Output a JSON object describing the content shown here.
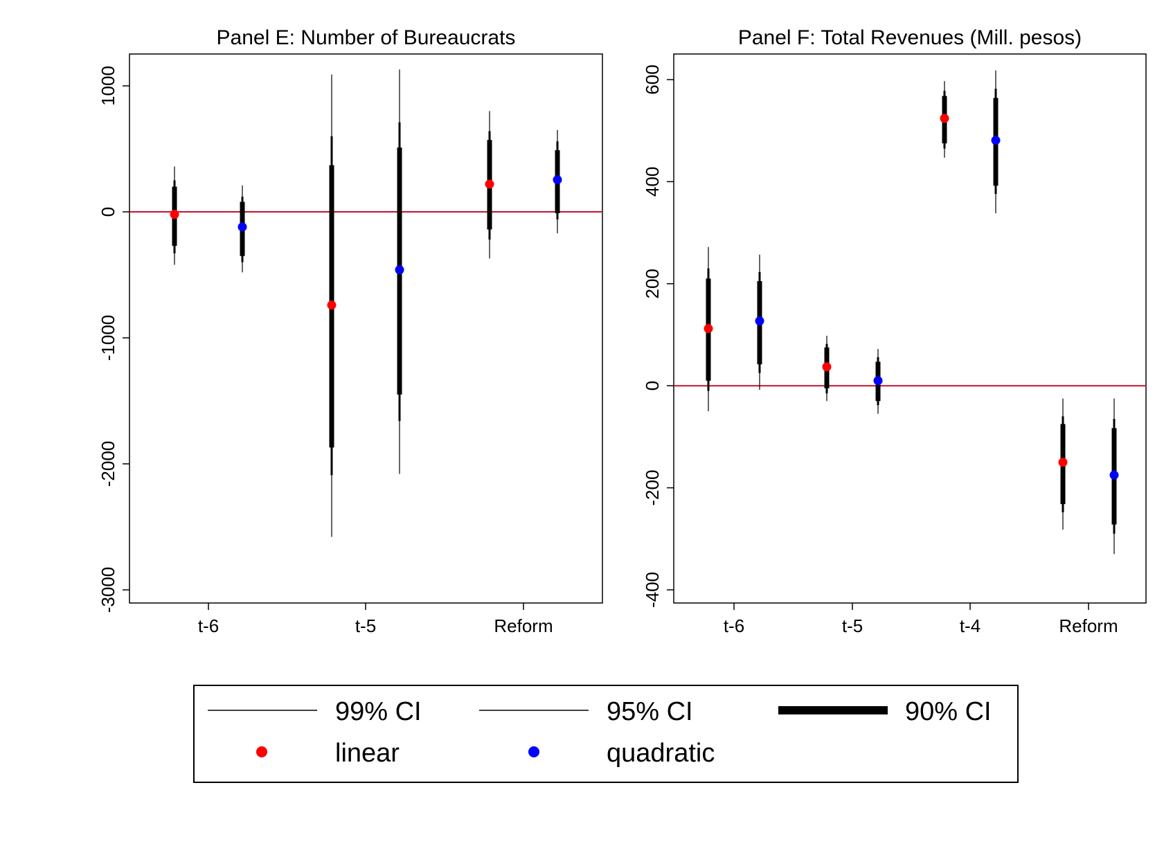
{
  "chart_data": [
    {
      "type": "errorbar",
      "title": "Panel E: Number of Bureaucrats",
      "categories": [
        "t-6",
        "t-5",
        "Reform"
      ],
      "y_ticks": [
        1000,
        0,
        -1000,
        -2000,
        -3000
      ],
      "ylim": [
        -3000,
        1250
      ],
      "reference_line": 0,
      "grid": false,
      "points": [
        {
          "category": "t-6",
          "series": "linear",
          "estimate": -20,
          "ci90": [
            -270,
            200
          ],
          "ci95": [
            -330,
            250
          ],
          "ci99": [
            -420,
            360
          ]
        },
        {
          "category": "t-6",
          "series": "quadratic",
          "estimate": -120,
          "ci90": [
            -350,
            80
          ],
          "ci95": [
            -400,
            120
          ],
          "ci99": [
            -480,
            210
          ]
        },
        {
          "category": "t-5",
          "series": "linear",
          "estimate": -740,
          "ci90": [
            -1870,
            370
          ],
          "ci95": [
            -2090,
            600
          ],
          "ci99": [
            -2580,
            1090
          ]
        },
        {
          "category": "t-5",
          "series": "quadratic",
          "estimate": -460,
          "ci90": [
            -1450,
            510
          ],
          "ci95": [
            -1660,
            710
          ],
          "ci99": [
            -2080,
            1130
          ]
        },
        {
          "category": "Reform",
          "series": "linear",
          "estimate": 220,
          "ci90": [
            -140,
            570
          ],
          "ci95": [
            -220,
            640
          ],
          "ci99": [
            -370,
            800
          ]
        },
        {
          "category": "Reform",
          "series": "quadratic",
          "estimate": 255,
          "ci90": [
            -10,
            490
          ],
          "ci95": [
            -60,
            560
          ],
          "ci99": [
            -170,
            650
          ]
        }
      ]
    },
    {
      "type": "errorbar",
      "title": "Panel F: Total Revenues (Mill. pesos)",
      "categories": [
        "t-6",
        "t-5",
        "t-4",
        "Reform"
      ],
      "y_ticks": [
        600,
        400,
        200,
        0,
        -200,
        -400
      ],
      "ylim": [
        -420,
        650
      ],
      "reference_line": 0,
      "grid": false,
      "points": [
        {
          "category": "t-6",
          "series": "linear",
          "estimate": 112,
          "ci90": [
            10,
            210
          ],
          "ci95": [
            -10,
            230
          ],
          "ci99": [
            -50,
            272
          ]
        },
        {
          "category": "t-6",
          "series": "quadratic",
          "estimate": 127,
          "ci90": [
            42,
            205
          ],
          "ci95": [
            25,
            223
          ],
          "ci99": [
            -8,
            257
          ]
        },
        {
          "category": "t-5",
          "series": "linear",
          "estimate": 37,
          "ci90": [
            -5,
            75
          ],
          "ci95": [
            -15,
            82
          ],
          "ci99": [
            -30,
            98
          ]
        },
        {
          "category": "t-5",
          "series": "quadratic",
          "estimate": 10,
          "ci90": [
            -30,
            47
          ],
          "ci95": [
            -38,
            56
          ],
          "ci99": [
            -55,
            72
          ]
        },
        {
          "category": "t-4",
          "series": "linear",
          "estimate": 524,
          "ci90": [
            475,
            568
          ],
          "ci95": [
            465,
            578
          ],
          "ci99": [
            447,
            597
          ]
        },
        {
          "category": "t-4",
          "series": "quadratic",
          "estimate": 481,
          "ci90": [
            392,
            564
          ],
          "ci95": [
            376,
            582
          ],
          "ci99": [
            338,
            618
          ]
        },
        {
          "category": "Reform",
          "series": "linear",
          "estimate": -150,
          "ci90": [
            -232,
            -75
          ],
          "ci95": [
            -248,
            -60
          ],
          "ci99": [
            -282,
            -25
          ]
        },
        {
          "category": "Reform",
          "series": "quadratic",
          "estimate": -175,
          "ci90": [
            -272,
            -83
          ],
          "ci95": [
            -290,
            -65
          ],
          "ci99": [
            -330,
            -25
          ]
        }
      ]
    }
  ],
  "legend": {
    "items": [
      {
        "key": "ci99",
        "label": "99% CI",
        "symbol": "thin-line"
      },
      {
        "key": "ci95",
        "label": "95% CI",
        "symbol": "thin-line"
      },
      {
        "key": "ci90",
        "label": "90% CI",
        "symbol": "thick-line"
      },
      {
        "key": "linear",
        "label": "linear",
        "symbol": "dot"
      },
      {
        "key": "quadratic",
        "label": "quadratic",
        "symbol": "dot"
      }
    ]
  },
  "colors": {
    "linear": "#ff0000",
    "quadratic": "#0000ff",
    "reference_line": "#c8102e",
    "ci": "#000000"
  }
}
